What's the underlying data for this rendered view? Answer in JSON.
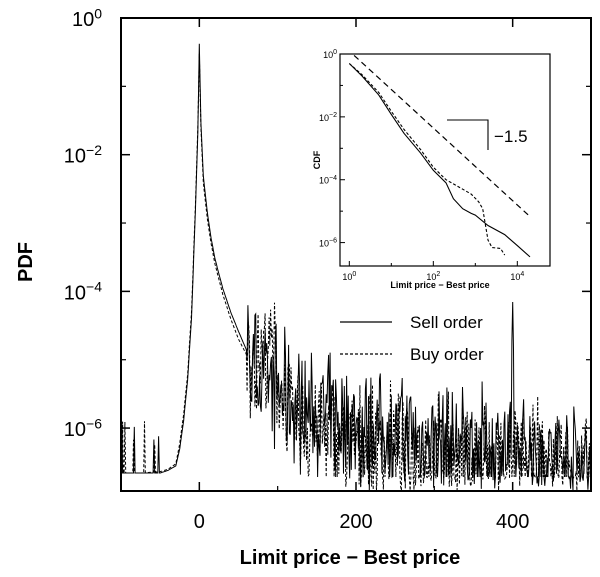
{
  "chart_data": [
    {
      "type": "line",
      "xlabel": "Limit price − Best price",
      "ylabel": "PDF",
      "xscale": "linear",
      "yscale": "log",
      "xlim": [
        -100,
        500
      ],
      "ylim": [
        1.2e-07,
        1.0
      ],
      "xticks": [
        0,
        200,
        400
      ],
      "xtick_labels": [
        "0",
        "200",
        "400"
      ],
      "yticks": [
        1e-06,
        0.0001,
        0.01,
        1
      ],
      "ytick_labels": [
        {
          "base": "10",
          "exp": "−6"
        },
        {
          "base": "10",
          "exp": "−4"
        },
        {
          "base": "10",
          "exp": "−2"
        },
        {
          "base": "10",
          "exp": "0"
        }
      ],
      "grid": false,
      "legend": "center-right",
      "series": [
        {
          "name": "Sell order",
          "style": "solid",
          "x": [
            -100,
            -75,
            -50,
            -40,
            -30,
            -25,
            -20,
            -15,
            -10,
            -5,
            -2,
            0,
            2,
            5,
            10,
            15,
            20,
            25,
            30,
            40,
            50,
            60,
            70,
            80,
            90,
            100,
            120,
            150,
            200,
            250,
            300,
            350,
            398,
            400,
            402,
            450,
            500
          ],
          "y": [
            2.2e-07,
            2.2e-07,
            2.2e-07,
            2.4e-07,
            2.8e-07,
            5e-07,
            1.3e-06,
            5e-06,
            4e-05,
            0.0015,
            0.02,
            0.42,
            0.03,
            0.005,
            0.0015,
            0.0006,
            0.0003,
            0.00018,
            0.00011,
            5e-05,
            2.6e-05,
            1.4e-05,
            8e-06,
            5.5e-06,
            5e-06,
            3.5e-06,
            2.2e-06,
            1.5e-06,
            1.1e-06,
            8e-07,
            6e-07,
            5e-07,
            4e-07,
            7e-05,
            4e-07,
            3.5e-07,
            3e-07
          ]
        },
        {
          "name": "Buy order",
          "style": "dashed",
          "x": [
            -100,
            -75,
            -50,
            -40,
            -30,
            -25,
            -20,
            -15,
            -10,
            -5,
            -2,
            0,
            2,
            5,
            10,
            15,
            20,
            25,
            30,
            40,
            50,
            60,
            70,
            80,
            90,
            95,
            100,
            110,
            120,
            150,
            200,
            250,
            300,
            350,
            400,
            450,
            500
          ],
          "y": [
            2.2e-07,
            2.2e-07,
            2.3e-07,
            2.5e-07,
            3e-07,
            6e-07,
            1.6e-06,
            6e-06,
            5e-05,
            0.0018,
            0.025,
            0.3,
            0.025,
            0.004,
            0.0012,
            0.0005,
            0.00025,
            0.00015,
            9e-05,
            4e-05,
            2e-05,
            1.2e-05,
            1.2e-05,
            1.4e-05,
            1.6e-05,
            1.4e-05,
            6e-06,
            2e-06,
            1.2e-06,
            9e-07,
            6e-07,
            5e-07,
            4e-07,
            3.5e-07,
            3e-07,
            2.8e-07,
            2.5e-07
          ]
        }
      ]
    },
    {
      "type": "line",
      "xlabel": "Limit price − Best price",
      "ylabel": "CDF",
      "xscale": "log",
      "yscale": "log",
      "xlim": [
        0.6,
        60000
      ],
      "ylim": [
        1.8e-07,
        1.0
      ],
      "xticks": [
        1,
        100,
        10000
      ],
      "xtick_labels": [
        {
          "base": "10",
          "exp": "0"
        },
        {
          "base": "10",
          "exp": "2"
        },
        {
          "base": "10",
          "exp": "4"
        }
      ],
      "yticks": [
        1e-06,
        0.0001,
        0.01,
        1
      ],
      "ytick_labels": [
        {
          "base": "10",
          "exp": "−6"
        },
        {
          "base": "10",
          "exp": "−4"
        },
        {
          "base": "10",
          "exp": "−2"
        },
        {
          "base": "10",
          "exp": "0"
        }
      ],
      "annotation": "−1.5",
      "series": [
        {
          "name": "Sell order",
          "style": "solid",
          "x": [
            1,
            2,
            5,
            10,
            20,
            50,
            100,
            200,
            300,
            500,
            800,
            1000,
            2000,
            5000,
            10000,
            20000
          ],
          "y": [
            0.5,
            0.2,
            0.05,
            0.012,
            0.003,
            0.0007,
            0.0002,
            8e-05,
            2.5e-05,
            1.2e-05,
            8.5e-06,
            7.5e-06,
            3.5e-06,
            1.8e-06,
            8e-07,
            3.5e-07
          ]
        },
        {
          "name": "Buy order",
          "style": "dashed",
          "x": [
            1,
            2,
            5,
            10,
            20,
            50,
            100,
            200,
            500,
            800,
            1200,
            1500,
            2000,
            2500,
            4000,
            5000
          ],
          "y": [
            0.5,
            0.22,
            0.06,
            0.015,
            0.004,
            0.0009,
            0.00025,
            0.0001,
            5e-05,
            3.5e-05,
            2e-05,
            1.2e-05,
            1.2e-06,
            7e-07,
            6.5e-07,
            4e-07
          ]
        },
        {
          "name": "",
          "style": "dashed",
          "x": [
            1.3,
            20000
          ],
          "y": [
            0.9,
            6.7e-06
          ]
        }
      ]
    }
  ]
}
